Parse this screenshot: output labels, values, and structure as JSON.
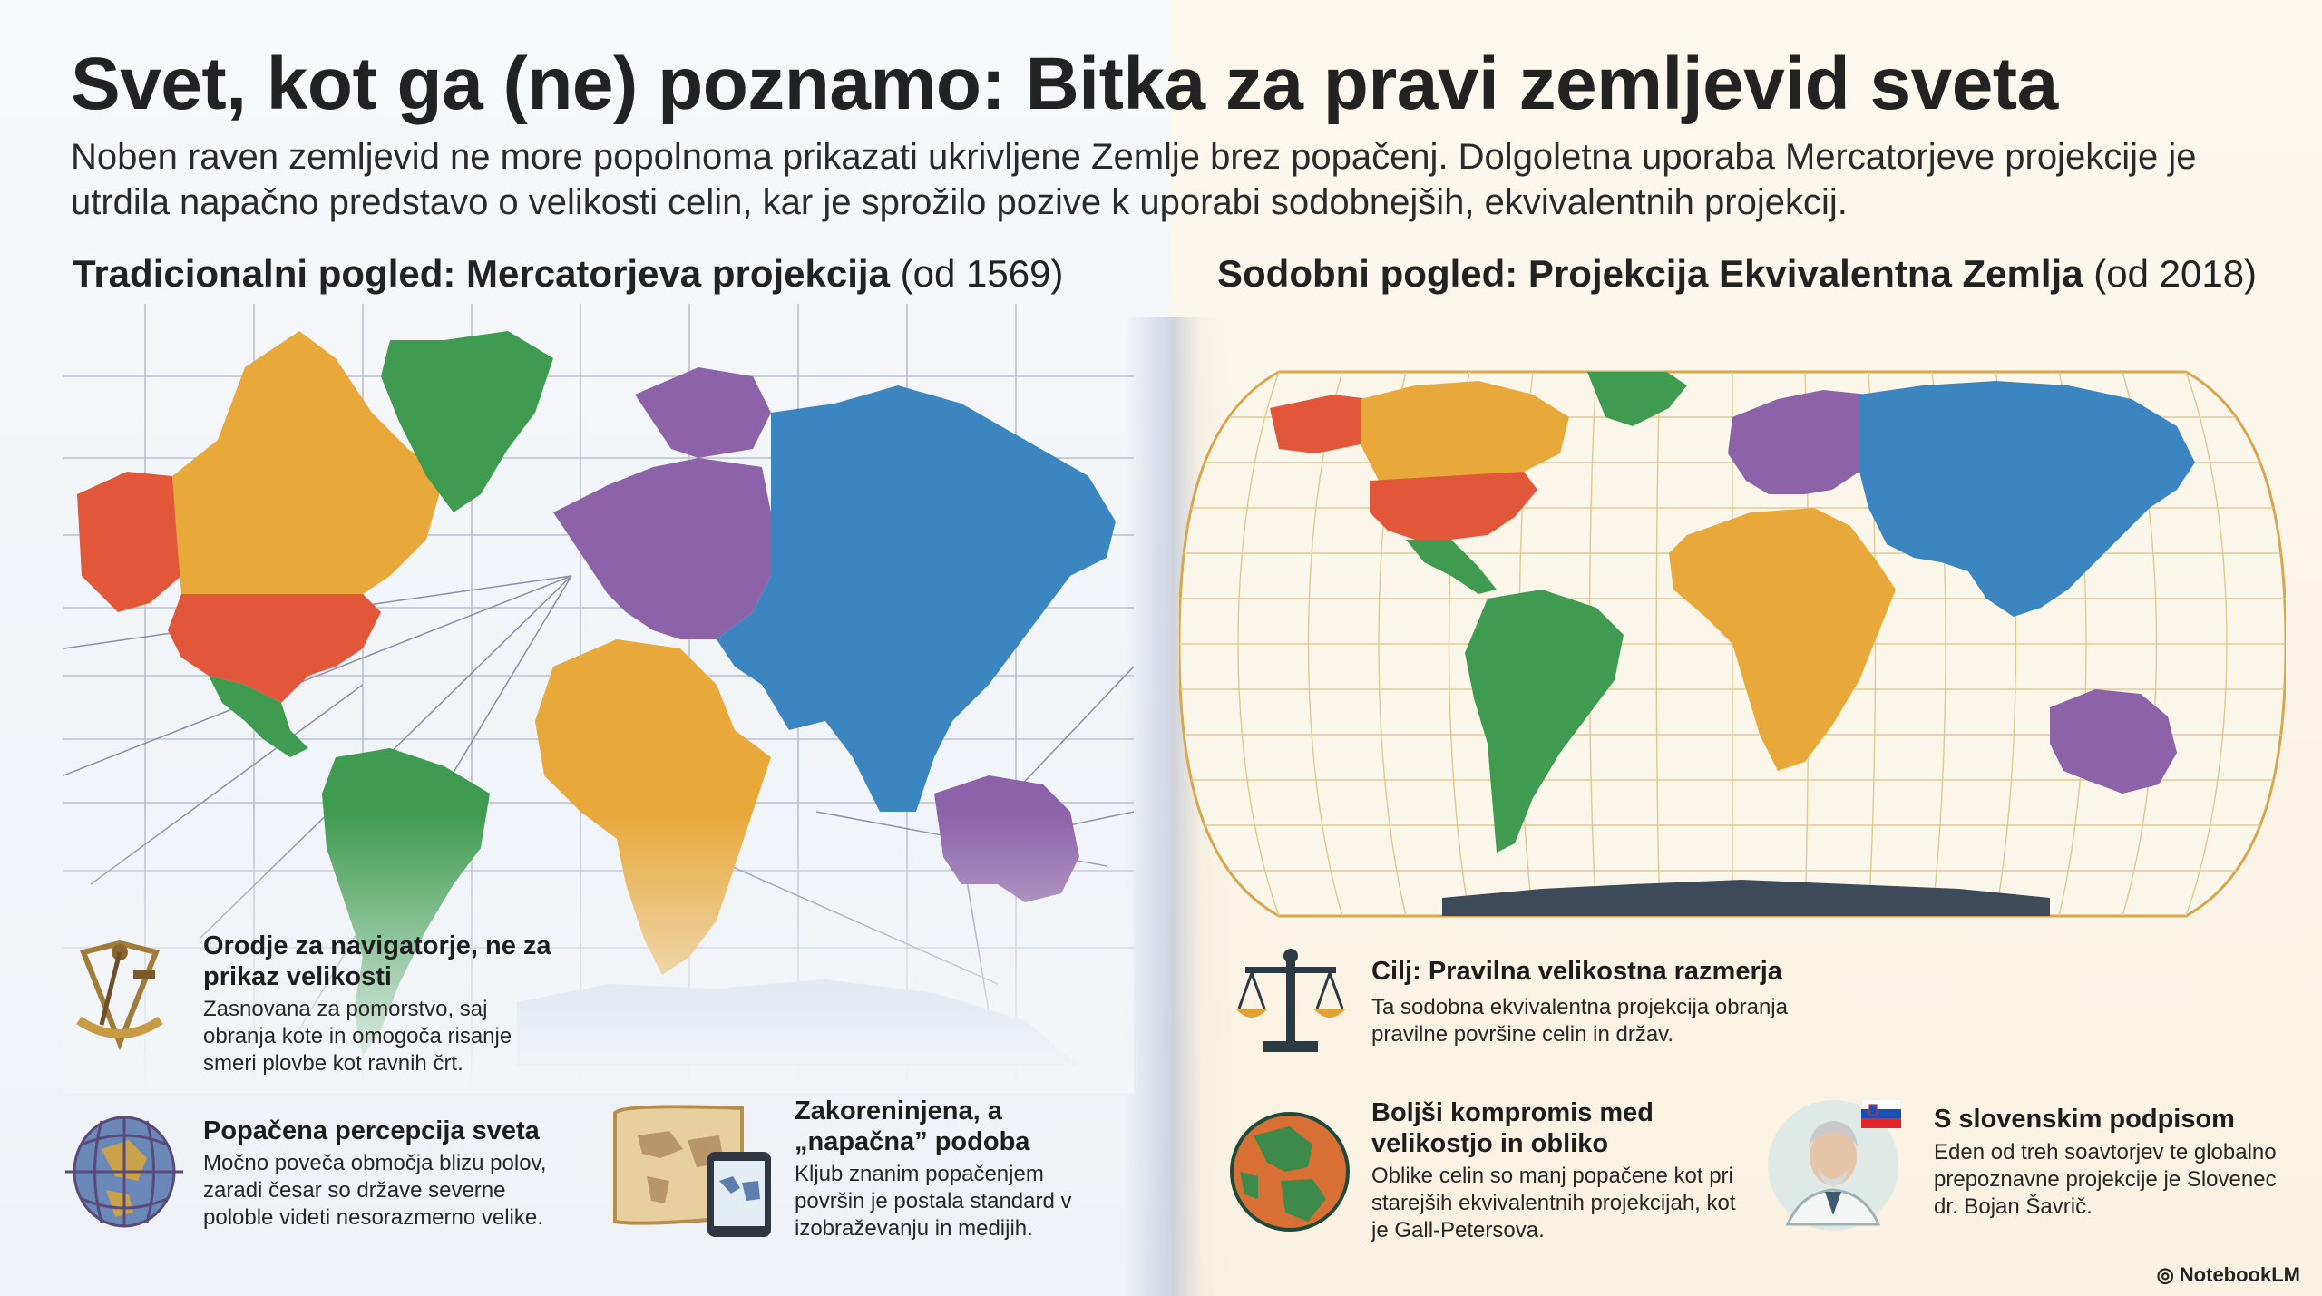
{
  "title": "Svet, kot ga (ne) poznamo: Bitka za pravi zemljevid sveta",
  "intro": "Noben raven zemljevid ne more popolnoma prikazati ukrivljene Zemlje brez popačenj. Dolgoletna uporaba Mercatorjeve projekcije je utrdila napačno predstavo o velikosti celin, kar je sprožilo pozive k uporabi sodobnejših, ekvivalentnih projekcij.",
  "left": {
    "heading_bold": "Tradicionalni pogled: Mercatorjeva projekcija",
    "heading_year": "(od 1569)",
    "features": [
      {
        "icon": "sextant-icon",
        "title": "Orodje za navigatorje, ne za prikaz velikosti",
        "text": "Zasnovana za pomorstvo, saj obranja kote in omogoča risanje smeri plovbe kot ravnih črt."
      },
      {
        "icon": "distorted-globe-icon",
        "title": "Popačena percepcija sveta",
        "text": "Močno poveča območja blizu polov, zaradi česar so države severne poloble videti nesorazmerno velike."
      },
      {
        "icon": "old-map-tablet-icon",
        "title": "Zakoreninjena, a „napačna” podoba",
        "text": "Kljub znanim popačenjem površin je postala standard v izobraževanju in medijih."
      }
    ]
  },
  "right": {
    "heading_bold": "Sodobni pogled: Projekcija Ekvivalentna Zemlja",
    "heading_year": "(od 2018)",
    "features": [
      {
        "icon": "balance-scale-icon",
        "title": "Cilj: Pravilna velikostna razmerja",
        "text": "Ta sodobna ekvivalentna projekcija obranja pravilne površine celin in držav."
      },
      {
        "icon": "earth-globe-icon",
        "title": "Boljši kompromis med velikostjo in obliko",
        "text": "Oblike celin so manj popačene kot pri starejših ekvivalentnih projekcijah, kot je Gall-Petersova."
      },
      {
        "icon": "scientist-portrait-icon",
        "title": "S slovenskim podpisom",
        "text": "Eden od treh soavtorjev te globalno prepoznavne projekcije je Slovenec dr. Bojan Šavrič."
      }
    ]
  },
  "brand": "NotebookLM",
  "colors": {
    "orange": "#e8a83a",
    "green": "#3e9b4f",
    "red": "#e2573a",
    "purple": "#8c62a8",
    "blue": "#3b86c0",
    "antarctica": "#3c4a5a"
  }
}
